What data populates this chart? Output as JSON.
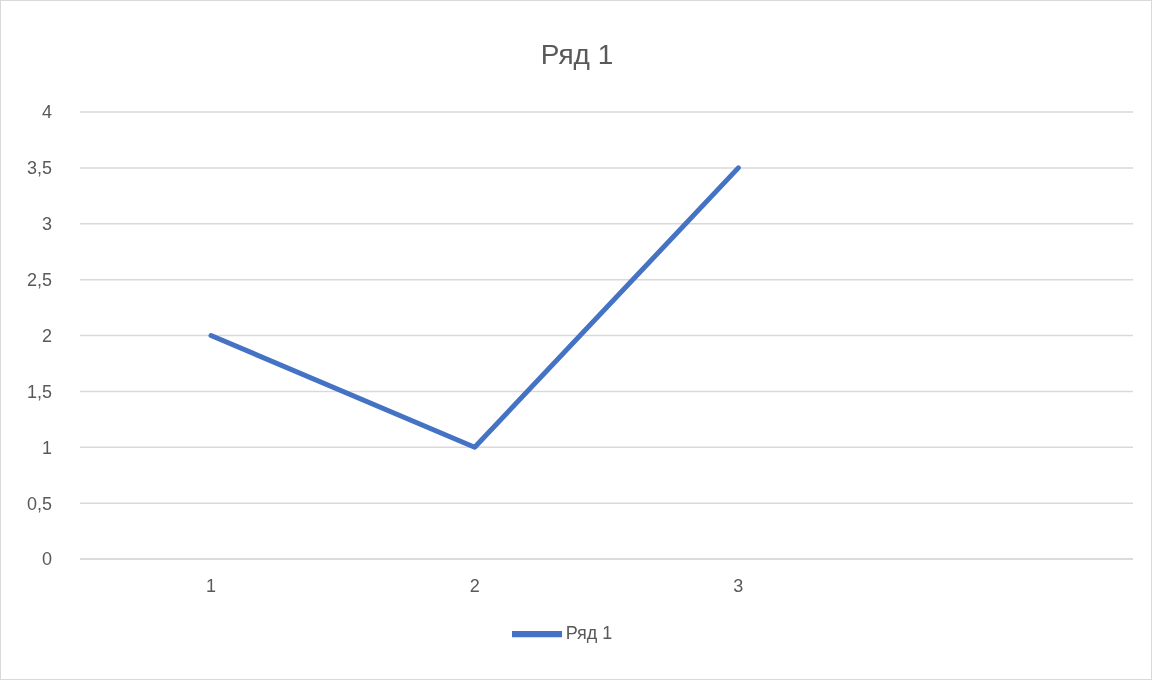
{
  "chart_data": {
    "type": "line",
    "title": "Ряд 1",
    "categories": [
      "1",
      "2",
      "3",
      null
    ],
    "series": [
      {
        "name": "Ряд 1",
        "color": "#4472c4",
        "values": [
          2,
          1,
          3.5,
          null
        ]
      }
    ],
    "ylim": [
      0,
      4
    ],
    "yticks": [
      0,
      {
        "value": 0.5,
        "label": "0,5"
      },
      1,
      {
        "value": 1.5,
        "label": "1,5"
      },
      2,
      {
        "value": 2.5,
        "label": "2,5"
      },
      3,
      {
        "value": 3.5,
        "label": "3,5"
      },
      4
    ],
    "grid": "y",
    "legend": "bottom",
    "marker": "none",
    "line_style": "solid"
  }
}
